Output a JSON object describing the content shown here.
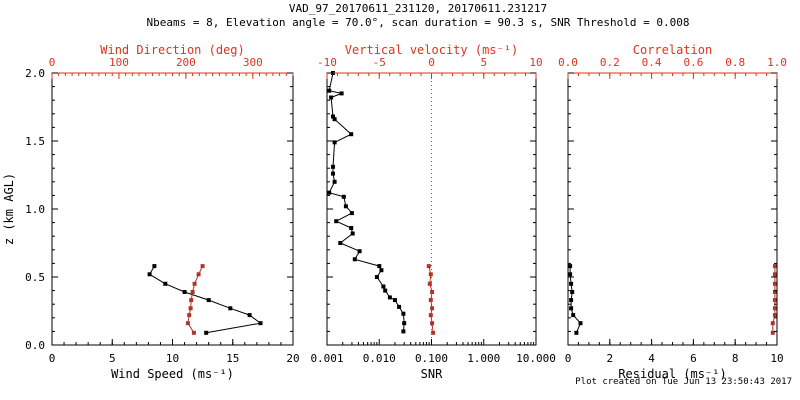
{
  "title": "VAD_97_20170611_231120, 20170611.231217",
  "subtitle": "Nbeams = 8, Elevation angle = 70.0°, scan duration = 90.3 s, SNR Threshold = 0.008",
  "footer": {
    "created_text": "Plot created on Tue Jun 13 23:50:43 2017"
  },
  "colors": {
    "axis_red": "#dd3322",
    "marker_red": "#b03528",
    "black": "#000000",
    "background": "#ffffff"
  },
  "chart_data": [
    {
      "type": "line",
      "name": "wind-profile-panel",
      "ylabel": "z (km AGL)",
      "y_range": [
        0,
        2
      ],
      "y_major_ticks": [
        0.0,
        0.5,
        1.0,
        1.5,
        2.0
      ],
      "y_tick_labels": [
        "0.0",
        "0.5",
        "1.0",
        "1.5",
        "2.0"
      ],
      "y_minor_step": 0.1,
      "show_y_labels": true,
      "bottom_axis": {
        "label": "Wind Speed (ms⁻¹)",
        "range": [
          0,
          20
        ],
        "major_ticks": [
          0,
          5,
          10,
          15,
          20
        ],
        "tick_labels": [
          "0",
          "5",
          "10",
          "15",
          "20"
        ],
        "minor_step": 1,
        "color": "black"
      },
      "top_axis": {
        "label": "Wind Direction (deg)",
        "range": [
          0,
          360
        ],
        "major_ticks": [
          0,
          100,
          200,
          300
        ],
        "tick_labels": [
          "0",
          "100",
          "200",
          "300"
        ],
        "minor_step": 10,
        "color": "red"
      },
      "series": [
        {
          "name": "wind_speed",
          "axis": "bottom",
          "color": "black",
          "marker": "square",
          "z": [
            0.09,
            0.16,
            0.22,
            0.27,
            0.33,
            0.39,
            0.45,
            0.52,
            0.58
          ],
          "values": [
            12.8,
            17.3,
            16.4,
            14.8,
            13.0,
            11.0,
            9.4,
            8.1,
            8.5
          ]
        },
        {
          "name": "wind_direction",
          "axis": "top",
          "color": "red",
          "marker": "square",
          "z": [
            0.09,
            0.16,
            0.22,
            0.27,
            0.33,
            0.39,
            0.45,
            0.52,
            0.58
          ],
          "values": [
            212,
            203,
            205,
            207,
            208,
            210,
            213,
            219,
            225
          ]
        }
      ]
    },
    {
      "type": "line",
      "name": "snr-panel",
      "y_range": [
        0,
        2
      ],
      "y_major_ticks": [
        0.0,
        0.5,
        1.0,
        1.5,
        2.0
      ],
      "y_minor_step": 0.1,
      "show_y_labels": false,
      "bottom_axis": {
        "label": "SNR",
        "scale": "log",
        "range": [
          0.001,
          10
        ],
        "major_ticks": [
          0.001,
          0.01,
          0.1,
          1,
          10
        ],
        "tick_labels": [
          "0.001",
          "0.010",
          "0.100",
          "1.000",
          "10.000"
        ],
        "color": "black"
      },
      "top_axis": {
        "label": "Vertical velocity (ms⁻¹)",
        "range": [
          -10,
          10
        ],
        "major_ticks": [
          -10,
          -5,
          0,
          5,
          10
        ],
        "tick_labels": [
          "-10",
          "-5",
          "0",
          "5",
          "10"
        ],
        "minor_step": 1,
        "color": "red"
      },
      "reference_line": {
        "axis": "top",
        "value": 0,
        "style": "dotted",
        "color": "red"
      },
      "series": [
        {
          "name": "snr",
          "axis": "bottom",
          "color": "black",
          "marker": "square",
          "z": [
            0.1,
            0.16,
            0.23,
            0.28,
            0.33,
            0.35,
            0.4,
            0.43,
            0.5,
            0.55,
            0.58,
            0.63,
            0.69,
            0.75,
            0.82,
            0.86,
            0.91,
            0.97,
            1.02,
            1.09,
            1.12,
            1.2,
            1.26,
            1.31,
            1.49,
            1.55,
            1.66,
            1.68,
            1.82,
            1.85,
            1.87,
            2.0
          ],
          "values": [
            0.029,
            0.03,
            0.029,
            0.024,
            0.02,
            0.016,
            0.013,
            0.012,
            0.009,
            0.011,
            0.01,
            0.0034,
            0.0042,
            0.0018,
            0.0031,
            0.0029,
            0.0015,
            0.003,
            0.0023,
            0.0021,
            0.0011,
            0.0014,
            0.0013,
            0.0013,
            0.0014,
            0.0029,
            0.0014,
            0.0013,
            0.0012,
            0.0019,
            0.0011,
            0.0013
          ]
        },
        {
          "name": "vertical_velocity",
          "axis": "top",
          "color": "red",
          "marker": "square",
          "z": [
            0.09,
            0.16,
            0.22,
            0.27,
            0.33,
            0.39,
            0.45,
            0.52,
            0.58
          ],
          "values": [
            0.15,
            0.06,
            -0.07,
            0.06,
            -0.07,
            0.06,
            -0.16,
            -0.07,
            -0.26
          ]
        }
      ]
    },
    {
      "type": "line",
      "name": "residual-correlation-panel",
      "y_range": [
        0,
        2
      ],
      "y_major_ticks": [
        0.0,
        0.5,
        1.0,
        1.5,
        2.0
      ],
      "y_minor_step": 0.1,
      "show_y_labels": false,
      "bottom_axis": {
        "label": "Residual (ms⁻¹)",
        "range": [
          0,
          10
        ],
        "major_ticks": [
          0,
          2,
          4,
          6,
          8,
          10
        ],
        "tick_labels": [
          "0",
          "2",
          "4",
          "6",
          "8",
          "10"
        ],
        "minor_step": 0.5,
        "color": "black"
      },
      "top_axis": {
        "label": "Correlation",
        "range": [
          0,
          1
        ],
        "major_ticks": [
          0,
          0.2,
          0.4,
          0.6,
          0.8,
          1.0
        ],
        "tick_labels": [
          "0.0",
          "0.2",
          "0.4",
          "0.6",
          "0.8",
          "1.0"
        ],
        "minor_step": 0.05,
        "color": "red"
      },
      "series": [
        {
          "name": "residual",
          "axis": "bottom",
          "color": "black",
          "marker": "square",
          "z": [
            0.09,
            0.16,
            0.22,
            0.27,
            0.33,
            0.39,
            0.45,
            0.52,
            0.58
          ],
          "values": [
            0.4,
            0.6,
            0.25,
            0.15,
            0.15,
            0.2,
            0.15,
            0.1,
            0.1
          ]
        },
        {
          "name": "correlation",
          "axis": "top",
          "color": "red",
          "marker": "square",
          "z": [
            0.09,
            0.16,
            0.22,
            0.27,
            0.33,
            0.39,
            0.45,
            0.52,
            0.58
          ],
          "values": [
            0.98,
            0.98,
            0.99,
            0.99,
            0.99,
            0.99,
            0.99,
            0.99,
            0.99
          ]
        }
      ]
    }
  ]
}
